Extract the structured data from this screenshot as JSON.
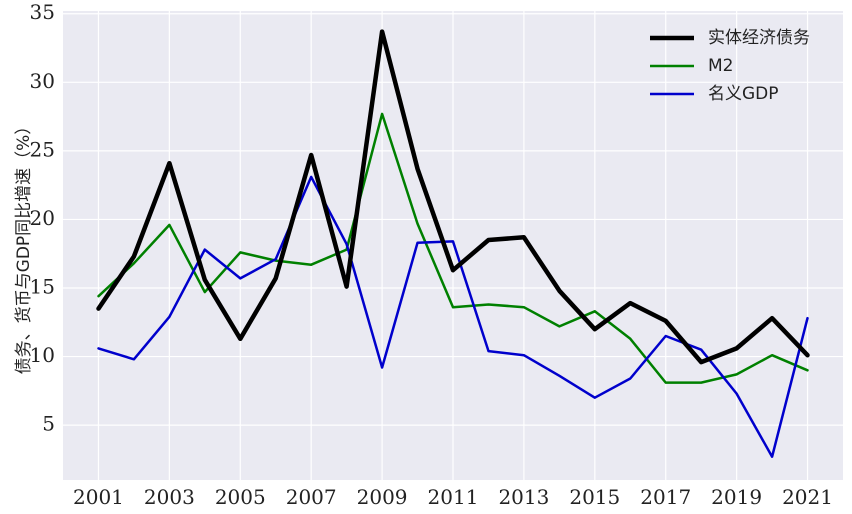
{
  "chart_data": {
    "type": "line",
    "title": "",
    "xlabel": "",
    "ylabel": "债务、货币与GDP同比增速（%）",
    "x": [
      2001,
      2002,
      2003,
      2004,
      2005,
      2006,
      2007,
      2008,
      2009,
      2010,
      2011,
      2012,
      2013,
      2014,
      2015,
      2016,
      2017,
      2018,
      2019,
      2020,
      2021
    ],
    "x_ticks": [
      "2001",
      "2003",
      "2005",
      "2007",
      "2009",
      "2011",
      "2013",
      "2015",
      "2017",
      "2019",
      "2021"
    ],
    "y_ticks": [
      5,
      10,
      15,
      20,
      25,
      30,
      35
    ],
    "xlim": [
      2000.0,
      2022.0
    ],
    "ylim": [
      1.0,
      35.2
    ],
    "grid": true,
    "legend_position": "top-right",
    "series": [
      {
        "name": "实体经济债务",
        "color": "#000000",
        "values": [
          13.5,
          17.3,
          24.1,
          15.6,
          11.3,
          15.7,
          24.7,
          15.1,
          33.7,
          23.7,
          16.3,
          18.5,
          18.7,
          14.8,
          12.0,
          13.9,
          12.6,
          9.6,
          10.6,
          12.8,
          10.1
        ]
      },
      {
        "name": "M2",
        "color": "#008000",
        "values": [
          14.4,
          16.8,
          19.6,
          14.7,
          17.6,
          17.0,
          16.7,
          17.8,
          27.7,
          19.7,
          13.6,
          13.8,
          13.6,
          12.2,
          13.3,
          11.3,
          8.1,
          8.1,
          8.7,
          10.1,
          9.0
        ]
      },
      {
        "name": "名义GDP",
        "color": "#0000cc",
        "values": [
          10.6,
          9.8,
          12.9,
          17.8,
          15.7,
          17.1,
          23.1,
          18.2,
          9.2,
          18.3,
          18.4,
          10.4,
          10.1,
          8.6,
          7.0,
          8.4,
          11.5,
          10.5,
          7.3,
          2.7,
          12.8
        ]
      }
    ]
  }
}
